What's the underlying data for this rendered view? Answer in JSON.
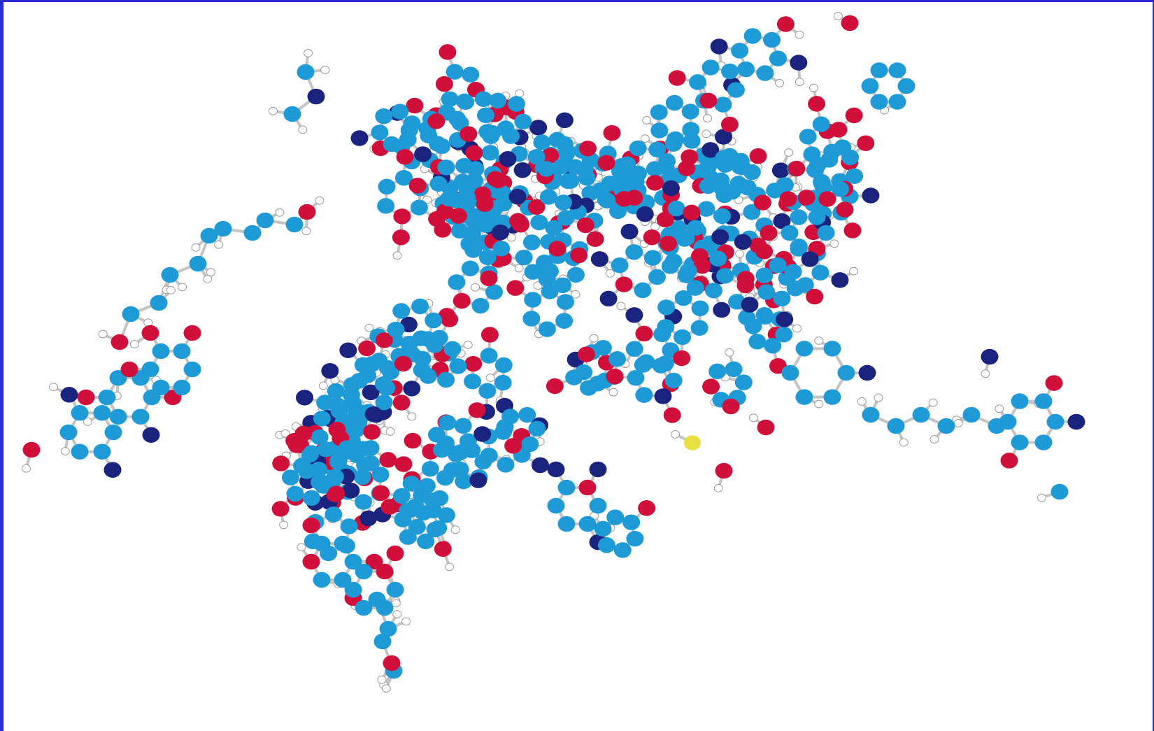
{
  "figure": {
    "kind": "ball-and-stick molecular model",
    "colors": {
      "frame": "#2a2ad0",
      "background": "#ffffff",
      "carbon": "#1e9ad6",
      "oxygen": "#d0103a",
      "nitrogen": "#1a237e",
      "hydrogen": "#ffffff",
      "sulfur": "#e8e040",
      "bond": "#c4c4c4"
    },
    "atom_types": [
      "carbon",
      "oxygen",
      "nitrogen",
      "hydrogen",
      "sulfur"
    ]
  }
}
